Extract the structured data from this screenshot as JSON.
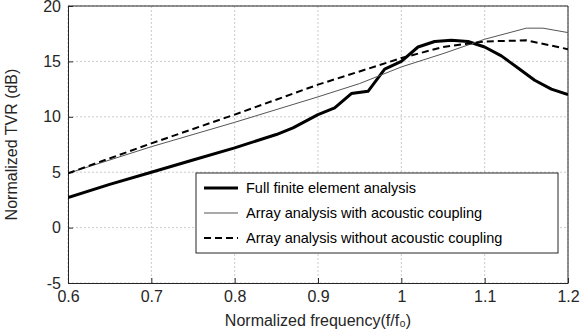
{
  "chart_data": {
    "type": "line",
    "x_label": "Normalized frequency(f/f₀)",
    "y_label": "Normalized TVR (dB)",
    "xlim": [
      0.6,
      1.2
    ],
    "ylim": [
      -5,
      20
    ],
    "xticks": [
      0.6,
      0.7,
      0.8,
      0.9,
      1,
      1.1,
      1.2
    ],
    "yticks": [
      -5,
      0,
      5,
      10,
      15,
      20
    ],
    "grid": true,
    "legend": "lower right",
    "series": [
      {
        "name": "Full finite element analysis",
        "color": "#000000",
        "line_style": "solid",
        "x": [
          0.6,
          0.65,
          0.7,
          0.75,
          0.8,
          0.85,
          0.87,
          0.9,
          0.92,
          0.94,
          0.96,
          0.98,
          1.0,
          1.02,
          1.04,
          1.06,
          1.08,
          1.1,
          1.12,
          1.14,
          1.16,
          1.18,
          1.2
        ],
        "values": [
          2.7,
          3.9,
          5.0,
          6.1,
          7.2,
          8.4,
          9.0,
          10.2,
          10.8,
          12.1,
          12.3,
          14.3,
          15.0,
          16.3,
          16.8,
          16.9,
          16.8,
          16.3,
          15.5,
          14.4,
          13.3,
          12.5,
          12.0
        ]
      },
      {
        "name": "Array analysis with acoustic coupling",
        "color": "#555555",
        "line_style": "solid",
        "x": [
          0.6,
          0.7,
          0.8,
          0.9,
          0.95,
          1.0,
          1.05,
          1.1,
          1.15,
          1.17,
          1.2
        ],
        "values": [
          4.9,
          7.3,
          9.5,
          11.8,
          13.0,
          14.5,
          15.7,
          17.0,
          18.0,
          18.0,
          17.6
        ]
      },
      {
        "name": "Array analysis without acoustic coupling",
        "color": "#000000",
        "line_style": "dashed",
        "x": [
          0.6,
          0.7,
          0.8,
          0.9,
          1.0,
          1.05,
          1.1,
          1.15,
          1.2
        ],
        "values": [
          4.9,
          7.6,
          10.2,
          12.9,
          15.3,
          16.3,
          16.8,
          16.9,
          16.1
        ]
      }
    ]
  }
}
